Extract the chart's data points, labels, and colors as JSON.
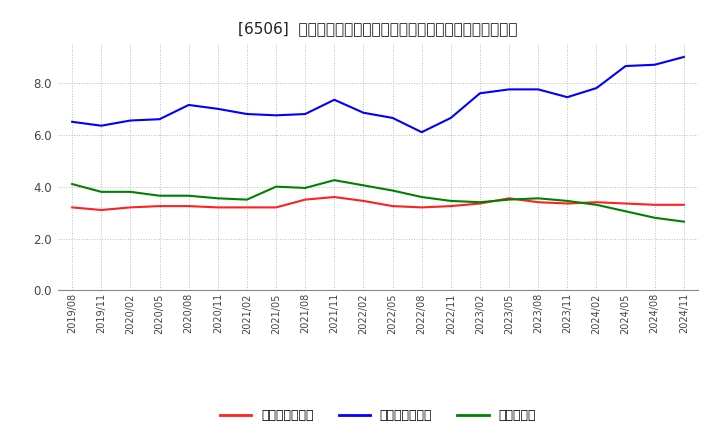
{
  "title": "[6506]  売上債権回転率、買入債務回転率、在庫回転率の推移",
  "x_labels": [
    "2019/08",
    "2019/11",
    "2020/02",
    "2020/05",
    "2020/08",
    "2020/11",
    "2021/02",
    "2021/05",
    "2021/08",
    "2021/11",
    "2022/02",
    "2022/05",
    "2022/08",
    "2022/11",
    "2023/02",
    "2023/05",
    "2023/08",
    "2023/11",
    "2024/02",
    "2024/05",
    "2024/08",
    "2024/11"
  ],
  "売上債権回転率": [
    3.2,
    3.1,
    3.2,
    3.25,
    3.25,
    3.2,
    3.2,
    3.2,
    3.5,
    3.6,
    3.45,
    3.25,
    3.2,
    3.25,
    3.35,
    3.55,
    3.4,
    3.35,
    3.4,
    3.35,
    3.3,
    3.3
  ],
  "買入債務回転率": [
    6.5,
    6.35,
    6.55,
    6.6,
    7.15,
    7.0,
    6.8,
    6.75,
    6.8,
    7.35,
    6.85,
    6.65,
    6.1,
    6.65,
    7.6,
    7.75,
    7.75,
    7.45,
    7.8,
    8.65,
    8.7,
    9.0
  ],
  "在庫回転率": [
    4.1,
    3.8,
    3.8,
    3.65,
    3.65,
    3.55,
    3.5,
    4.0,
    3.95,
    4.25,
    4.05,
    3.85,
    3.6,
    3.45,
    3.4,
    3.5,
    3.55,
    3.45,
    3.3,
    3.05,
    2.8,
    2.65
  ],
  "line_colors": {
    "売上債権回転率": "#ff2020",
    "買入債務回転率": "#0000ff",
    "在庫回転率": "#008000"
  },
  "ylim": [
    0.0,
    9.5
  ],
  "yticks": [
    0.0,
    2.0,
    4.0,
    6.0,
    8.0
  ],
  "legend_labels": [
    "売上債権回転率",
    "買入債務回転率",
    "在庫回転率"
  ],
  "bg_color": "#ffffff",
  "grid_color": "#aaaaaa",
  "title_fontsize": 11
}
